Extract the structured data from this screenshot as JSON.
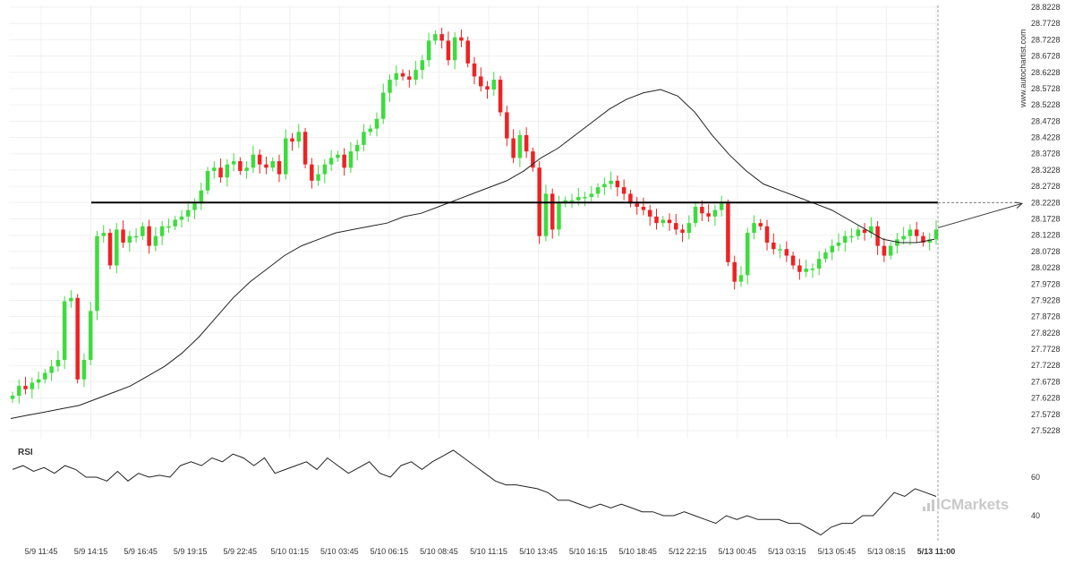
{
  "chart_data": {
    "type": "candlestick",
    "watermark": "www.autochartist.com",
    "brand": "ICMarkets",
    "colors": {
      "up": "#3ddc3d",
      "down": "#ee2222",
      "ma": "#222222",
      "level": "#000000",
      "rsi": "#222222",
      "grid": "#f0f0f0"
    },
    "price_axis": {
      "ticks": [
        "28.8228",
        "28.7728",
        "28.7228",
        "28.6728",
        "28.6228",
        "28.5728",
        "28.5228",
        "28.4728",
        "28.4228",
        "28.3728",
        "28.3228",
        "28.2728",
        "28.2228",
        "28.1728",
        "28.1228",
        "28.0728",
        "28.0228",
        "27.9728",
        "27.9228",
        "27.8728",
        "27.8228",
        "27.7728",
        "27.7228",
        "27.6728",
        "27.6228",
        "27.5728",
        "27.5228"
      ],
      "min": 27.5228,
      "max": 28.8228
    },
    "time_axis": {
      "labels": [
        "5/9 11:45",
        "5/9 14:15",
        "5/9 16:45",
        "5/9 19:15",
        "5/9 22:45",
        "5/10 01:15",
        "5/10 03:45",
        "5/10 06:15",
        "5/10 08:45",
        "5/10 11:15",
        "5/10 13:45",
        "5/10 16:15",
        "5/10 18:45",
        "5/12 22:15",
        "5/13 00:45",
        "5/13 03:15",
        "5/13 05:45",
        "5/13 08:15",
        "5/13 11:00"
      ],
      "last_label_bold": true
    },
    "resistance_level": 28.2228,
    "ohlc_close_series": [
      27.63,
      27.66,
      27.65,
      27.67,
      27.68,
      27.7,
      27.72,
      27.74,
      27.92,
      27.93,
      27.68,
      27.74,
      27.89,
      28.12,
      28.13,
      28.03,
      28.14,
      28.1,
      28.12,
      28.12,
      28.15,
      28.09,
      28.12,
      28.15,
      28.15,
      28.17,
      28.18,
      28.2,
      28.22,
      28.26,
      28.32,
      28.33,
      28.3,
      28.34,
      28.35,
      28.32,
      28.33,
      28.37,
      28.34,
      28.33,
      28.35,
      28.31,
      28.42,
      28.41,
      28.44,
      28.34,
      28.29,
      28.31,
      28.34,
      28.36,
      28.37,
      28.33,
      28.38,
      28.4,
      28.44,
      28.45,
      28.48,
      28.56,
      28.6,
      28.62,
      28.61,
      28.6,
      28.63,
      28.66,
      28.72,
      28.74,
      28.72,
      28.66,
      28.73,
      28.72,
      28.65,
      28.61,
      28.58,
      28.57,
      28.6,
      28.5,
      28.42,
      28.36,
      28.43,
      28.38,
      28.33,
      28.12,
      28.25,
      28.14,
      28.22,
      28.23,
      28.23,
      28.24,
      28.24,
      28.25,
      28.27,
      28.28,
      28.29,
      28.27,
      28.25,
      28.22,
      28.21,
      28.2,
      28.18,
      28.16,
      28.17,
      28.16,
      28.14,
      28.13,
      28.16,
      28.21,
      28.19,
      28.18,
      28.2,
      28.22,
      28.04,
      27.98,
      28.0,
      28.13,
      28.16,
      28.15,
      28.1,
      28.08,
      28.08,
      28.06,
      28.03,
      28.01,
      28.02,
      28.02,
      28.05,
      28.07,
      28.09,
      28.1,
      28.12,
      28.12,
      28.14,
      28.13,
      28.15,
      28.09,
      28.06,
      28.09,
      28.11,
      28.12,
      28.14,
      28.12,
      28.1,
      28.11,
      28.14
    ],
    "ma_series": [
      27.56,
      27.57,
      27.58,
      27.59,
      27.6,
      27.62,
      27.64,
      27.66,
      27.69,
      27.72,
      27.76,
      27.81,
      27.87,
      27.93,
      27.98,
      28.02,
      28.06,
      28.09,
      28.11,
      28.13,
      28.14,
      28.15,
      28.16,
      28.18,
      28.19,
      28.21,
      28.23,
      28.25,
      28.27,
      28.29,
      28.32,
      28.36,
      28.39,
      28.43,
      28.47,
      28.51,
      28.54,
      28.56,
      28.57,
      28.55,
      28.5,
      28.43,
      28.37,
      28.32,
      28.28,
      28.26,
      28.24,
      28.22,
      28.2,
      28.17,
      28.14,
      28.11,
      28.1,
      28.1,
      28.11
    ],
    "rsi": {
      "label": "RSI",
      "ticks": [
        "60",
        "40"
      ],
      "min": 30,
      "max": 75,
      "values": [
        64,
        66,
        63,
        65,
        62,
        66,
        64,
        60,
        60,
        58,
        63,
        58,
        62,
        60,
        61,
        60,
        66,
        68,
        66,
        70,
        68,
        72,
        70,
        66,
        70,
        62,
        64,
        66,
        68,
        64,
        70,
        66,
        62,
        65,
        68,
        62,
        60,
        66,
        68,
        64,
        68,
        71,
        74,
        70,
        66,
        62,
        58,
        56,
        56,
        55,
        54,
        52,
        48,
        48,
        46,
        44,
        46,
        44,
        46,
        44,
        42,
        42,
        40,
        40,
        42,
        40,
        38,
        36,
        40,
        38,
        40,
        38,
        38,
        38,
        36,
        36,
        33,
        30,
        34,
        36,
        36,
        40,
        40,
        46,
        52,
        50,
        54,
        52,
        50
      ]
    }
  }
}
